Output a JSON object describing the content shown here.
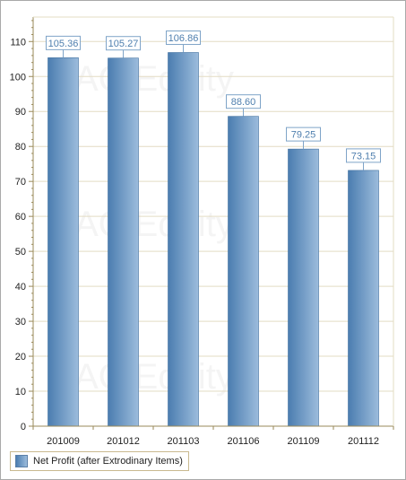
{
  "chart_data": {
    "type": "bar",
    "title": "",
    "xlabel": "",
    "ylabel": "",
    "categories": [
      "201009",
      "201012",
      "201103",
      "201106",
      "201109",
      "201112"
    ],
    "series": [
      {
        "name": "Net Profit (after Extrodinary Items)",
        "values": [
          105.36,
          105.27,
          106.86,
          88.6,
          79.25,
          73.15
        ],
        "value_labels": [
          "105.36",
          "105.27",
          "106.86",
          "88.60",
          "79.25",
          "73.15"
        ]
      }
    ],
    "ylim": [
      0,
      117
    ],
    "yticks": [
      0,
      10,
      20,
      30,
      40,
      50,
      60,
      70,
      80,
      90,
      100,
      110
    ],
    "grid": true,
    "legend_position": "bottom-left",
    "watermark": "AC Equity",
    "colors": {
      "bar_dark": "#4b7db0",
      "bar_light": "#9cbcdc",
      "bar_border": "#3f6f9f",
      "grid": "#e3dcc3",
      "axis": "#9a8a5a",
      "label_border": "#7fa4c8"
    }
  }
}
